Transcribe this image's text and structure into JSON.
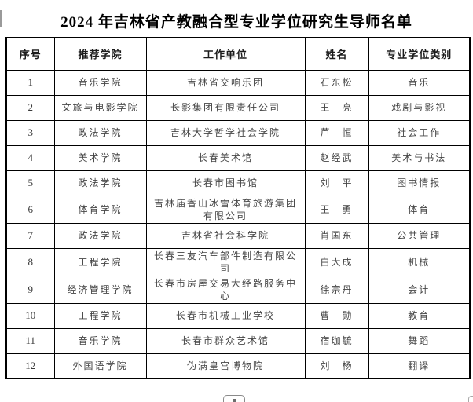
{
  "page": {
    "title": "2024 年吉林省产教融合型专业学位研究生导师名单"
  },
  "table": {
    "headers": [
      "序号",
      "推荐学院",
      "工作单位",
      "姓名",
      "专业学位类别"
    ],
    "rows": [
      [
        "1",
        "音乐学院",
        "吉林省交响乐团",
        "石东松",
        "音乐"
      ],
      [
        "2",
        "文旅与电影学院",
        "长影集团有限责任公司",
        "王　亮",
        "戏剧与影视"
      ],
      [
        "3",
        "政法学院",
        "吉林大学哲学社会学院",
        "芦　恒",
        "社会工作"
      ],
      [
        "4",
        "美术学院",
        "长春美术馆",
        "赵经武",
        "美术与书法"
      ],
      [
        "5",
        "政法学院",
        "长春市图书馆",
        "刘　平",
        "图书情报"
      ],
      [
        "6",
        "体育学院",
        "吉林庙香山冰雪体育旅游集团有限公司",
        "王　勇",
        "体育"
      ],
      [
        "7",
        "政法学院",
        "吉林省社会科学院",
        "肖国东",
        "公共管理"
      ],
      [
        "8",
        "工程学院",
        "长春三友汽车部件制造有限公司",
        "白大成",
        "机械"
      ],
      [
        "9",
        "经济管理学院",
        "长春市房屋交易大经路服务中心",
        "徐宗丹",
        "会计"
      ],
      [
        "10",
        "工程学院",
        "长春市机械工业学校",
        "曹　勋",
        "教育"
      ],
      [
        "11",
        "音乐学院",
        "长春市群众艺术馆",
        "宿珈毓",
        "舞蹈"
      ],
      [
        "12",
        "外国语学院",
        "伪满皇宫博物院",
        "刘　杨",
        "翻译"
      ]
    ]
  },
  "colors": {
    "border": "#000000",
    "title_text": "#000000",
    "body_text": "#464646"
  },
  "artifacts": {
    "bottom_button_glyph": "partial-button"
  }
}
